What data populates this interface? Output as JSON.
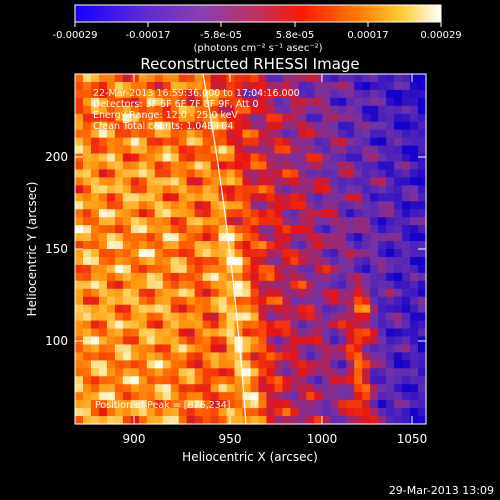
{
  "colorbar": {
    "ticks": [
      "-0.00029",
      "-0.00017",
      "-5.8e-05",
      "5.8e-05",
      "0.00017",
      "0.00029"
    ],
    "units_html": "(photons cm⁻² s⁻¹ asec⁻²)"
  },
  "chart_data": {
    "type": "heatmap",
    "title": "Reconstructed RHESSI Image",
    "xlabel": "Heliocentric X (arcsec)",
    "ylabel": "Heliocentric Y (arcsec)",
    "xlim": [
      866,
      1066
    ],
    "ylim": [
      52,
      245
    ],
    "xticks": [
      "900",
      "950",
      "1000",
      "1050"
    ],
    "yticks": [
      "100",
      "150",
      "200"
    ],
    "annotations": [
      "22-Mar-2013 16:59:36.000 to 17:04:16.000",
      "Detectors: 3F 5F 6F 7F 8F 9F, Att 0",
      "Energy Range: 12.0 - 25.0 keV",
      "Clean     Total counts: 1.04E+04"
    ],
    "peak_label": "Position of Peak = [876,234]",
    "colormap": "blue-purple-red-orange-yellow-white"
  },
  "footer": {
    "date": "29-Mar-2013 13:09"
  }
}
